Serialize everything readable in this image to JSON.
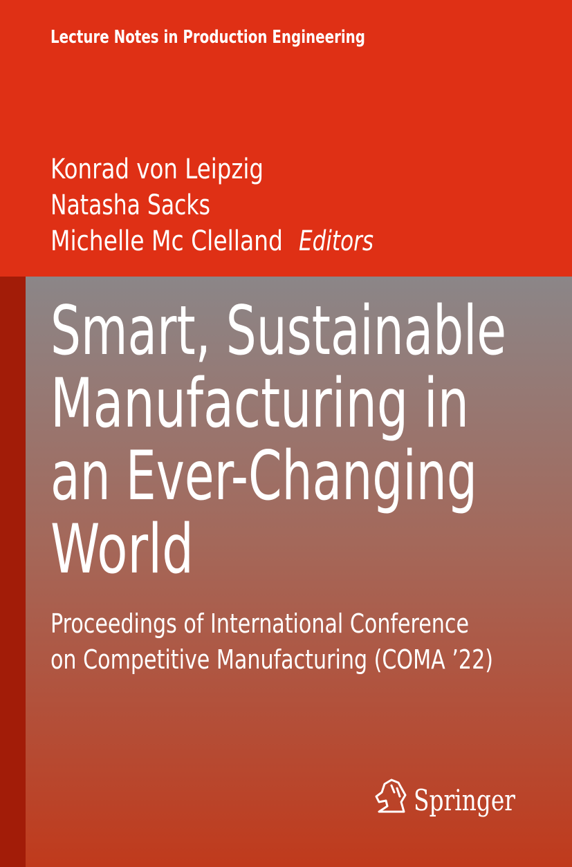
{
  "series": "Lecture Notes in Production Engineering",
  "editors": [
    "Konrad von Leipzig",
    "Natasha Sacks",
    "Michelle Mc Clelland"
  ],
  "editors_label": "Editors",
  "title_lines": [
    "Smart, Sustainable",
    "Manufacturing in",
    "an Ever-Changing",
    "World"
  ],
  "subtitle_lines": [
    "Proceedings of International Conference",
    "on Competitive Manufacturing (COMA ’22)"
  ],
  "publisher": "Springer"
}
